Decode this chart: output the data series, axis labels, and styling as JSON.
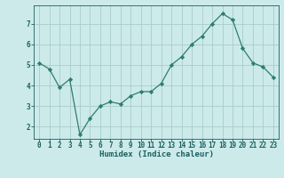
{
  "x": [
    0,
    1,
    2,
    3,
    4,
    5,
    6,
    7,
    8,
    9,
    10,
    11,
    12,
    13,
    14,
    15,
    16,
    17,
    18,
    19,
    20,
    21,
    22,
    23
  ],
  "y": [
    5.1,
    4.8,
    3.9,
    4.3,
    1.6,
    2.4,
    3.0,
    3.2,
    3.1,
    3.5,
    3.7,
    3.7,
    4.1,
    5.0,
    5.4,
    6.0,
    6.4,
    7.0,
    7.5,
    7.2,
    5.8,
    5.1,
    4.9,
    4.4
  ],
  "line_color": "#2e7d6e",
  "marker": "D",
  "marker_size": 2.2,
  "bg_color": "#cceaea",
  "grid_color": "#aacccc",
  "xlabel": "Humidex (Indice chaleur)",
  "ylim": [
    1.4,
    7.9
  ],
  "xlim": [
    -0.5,
    23.5
  ],
  "yticks": [
    2,
    3,
    4,
    5,
    6,
    7
  ],
  "xticks": [
    0,
    1,
    2,
    3,
    4,
    5,
    6,
    7,
    8,
    9,
    10,
    11,
    12,
    13,
    14,
    15,
    16,
    17,
    18,
    19,
    20,
    21,
    22,
    23
  ],
  "tick_color": "#1a5f5f",
  "label_fontsize": 6.0,
  "tick_fontsize": 5.5,
  "xlabel_fontsize": 6.5
}
